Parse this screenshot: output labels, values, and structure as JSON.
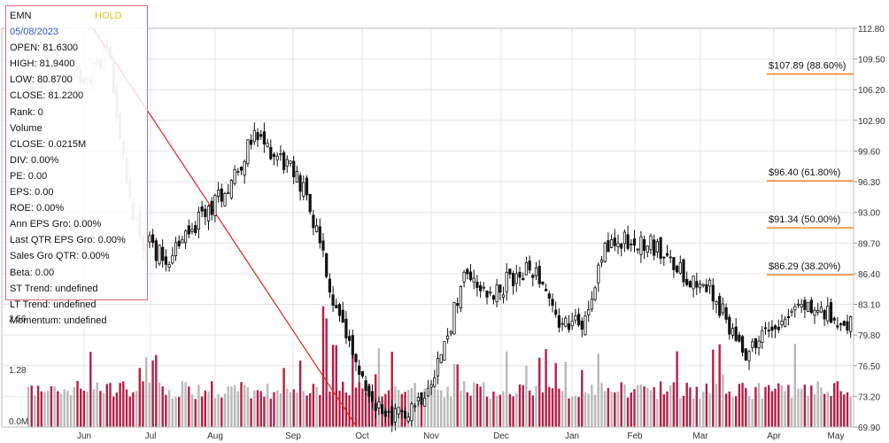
{
  "header": {
    "symbol": "EMN",
    "rating": "HOLD",
    "date": "05/08/2023"
  },
  "info_rows": [
    "OPEN: 81.6300",
    "HIGH: 81.9400",
    "LOW: 80.8700",
    "CLOSE: 81.2200",
    "Rank: 0",
    "Volume",
    "CLOSE: 0.0215M",
    "DIV: 0.00%",
    "PE: 0.00",
    "EPS: 0.00",
    "ROE: 0.00%",
    "Ann EPS Gro: 0.00%",
    "Last QTR EPS Gro: 0.00%",
    "Sales Gro QTR: 0.00%",
    "Beta: 0.00",
    "ST Trend: undefined",
    "LT Trend: undefined",
    "Momentum: undefined"
  ],
  "colors": {
    "up_volume": "#b51f45",
    "down_volume": "#b9b9b9",
    "fib_line": "#f07a18",
    "trend_line": "#e52020",
    "candle": "#111111",
    "panel_border": "#e06a7a",
    "hold": "#e3c31e",
    "date": "#2f56d8"
  },
  "chart_data": {
    "type": "candlestick",
    "months": [
      "Jun",
      "Jul",
      "Aug",
      "Sep",
      "Oct",
      "Nov",
      "Dec",
      "Jan",
      "Feb",
      "Mar",
      "Apr",
      "May"
    ],
    "price_axis": {
      "ticks": [
        "112.80",
        "109.50",
        "106.20",
        "102.90",
        "99.60",
        "96.30",
        "93.00",
        "89.70",
        "86.40",
        "83.10",
        "79.80",
        "76.50",
        "73.20",
        "69.90"
      ],
      "range": [
        69.9,
        112.8
      ]
    },
    "volume_axis": {
      "ticks": [
        "2.56",
        "1.28",
        "0.0M"
      ],
      "range": [
        0,
        3.2
      ]
    },
    "fib_levels": [
      {
        "label": "$107.89 (88.60%)",
        "price": 107.89
      },
      {
        "label": "$96.40 (61.80%)",
        "price": 96.4
      },
      {
        "label": "$91.34 (50.00%)",
        "price": 91.34
      },
      {
        "label": "$86.29 (38.20%)",
        "price": 86.29
      }
    ],
    "trend_line": {
      "from": {
        "month": "Jun",
        "price": 112.8
      },
      "to": {
        "month": "Oct",
        "price": 69.9
      }
    },
    "price_path": [
      [
        "May",
        106
      ],
      [
        "Jun",
        108
      ],
      [
        "Jun",
        111
      ],
      [
        "Jun",
        96
      ],
      [
        "Jun",
        90
      ],
      [
        "Jul",
        88
      ],
      [
        "Jul",
        92
      ],
      [
        "Aug",
        96
      ],
      [
        "Aug",
        101
      ],
      [
        "Aug",
        99
      ],
      [
        "Sep",
        96
      ],
      [
        "Sep",
        90
      ],
      [
        "Sep",
        82
      ],
      [
        "Sep",
        77
      ],
      [
        "Oct",
        72
      ],
      [
        "Oct",
        71
      ],
      [
        "Oct",
        73
      ],
      [
        "Nov",
        78
      ],
      [
        "Nov",
        87
      ],
      [
        "Nov",
        84
      ],
      [
        "Dec",
        86
      ],
      [
        "Dec",
        87
      ],
      [
        "Dec",
        81
      ],
      [
        "Jan",
        81
      ],
      [
        "Jan",
        89
      ],
      [
        "Jan",
        90
      ],
      [
        "Feb",
        90
      ],
      [
        "Feb",
        88
      ],
      [
        "Feb",
        86
      ],
      [
        "Mar",
        85
      ],
      [
        "Mar",
        81
      ],
      [
        "Mar",
        78
      ],
      [
        "Mar",
        80
      ],
      [
        "Apr",
        82
      ],
      [
        "Apr",
        83
      ],
      [
        "Apr",
        82
      ],
      [
        "May",
        79
      ],
      [
        "May",
        81
      ]
    ]
  }
}
